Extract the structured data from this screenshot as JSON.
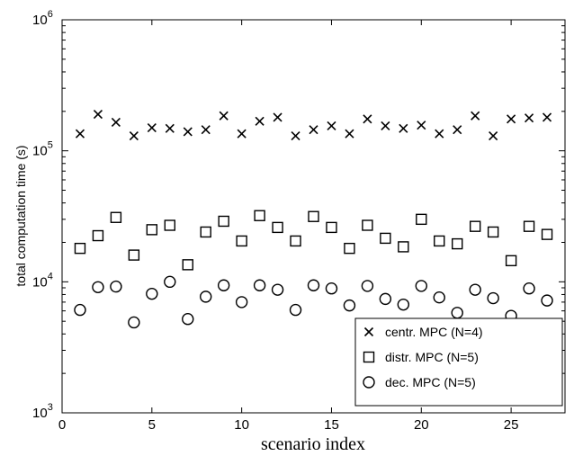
{
  "chart_data": {
    "type": "scatter",
    "xlabel": "scenario index",
    "ylabel": "total computation time (s)",
    "xlim": [
      0,
      28
    ],
    "ylim": [
      1000,
      1000000
    ],
    "yscale": "log",
    "xticks": [
      0,
      5,
      10,
      15,
      20,
      25
    ],
    "yticks": [
      {
        "base": "10",
        "exp": "3",
        "value": 1000
      },
      {
        "base": "10",
        "exp": "4",
        "value": 10000
      },
      {
        "base": "10",
        "exp": "5",
        "value": 100000
      },
      {
        "base": "10",
        "exp": "6",
        "value": 1000000
      }
    ],
    "grid": false,
    "legend_position": "bottom-right",
    "x": [
      1,
      2,
      3,
      4,
      5,
      6,
      7,
      8,
      9,
      10,
      11,
      12,
      13,
      14,
      15,
      16,
      17,
      18,
      19,
      20,
      21,
      22,
      23,
      24,
      25,
      26,
      27
    ],
    "series": [
      {
        "name": "centr. MPC (N=4)",
        "marker": "x",
        "values": [
          135000,
          190000,
          165000,
          130000,
          150000,
          148000,
          140000,
          145000,
          185000,
          135000,
          168000,
          180000,
          130000,
          145000,
          155000,
          135000,
          175000,
          155000,
          148000,
          157000,
          135000,
          145000,
          185000,
          130000,
          175000,
          178000,
          180000
        ]
      },
      {
        "name": "distr. MPC (N=5)",
        "marker": "square",
        "values": [
          18000,
          22500,
          31000,
          16000,
          25000,
          27000,
          13500,
          24000,
          29000,
          20500,
          32000,
          26000,
          20500,
          31500,
          26000,
          18000,
          27000,
          21500,
          18500,
          30000,
          20500,
          19500,
          26500,
          24000,
          14500,
          26500,
          23000
        ]
      },
      {
        "name": "dec. MPC (N=5)",
        "marker": "circle",
        "values": [
          6100,
          9100,
          9200,
          4900,
          8100,
          10000,
          5200,
          7700,
          9400,
          7000,
          9400,
          8700,
          6100,
          9400,
          8900,
          6600,
          9300,
          7400,
          6700,
          9300,
          7600,
          5800,
          8700,
          7500,
          5500,
          8900,
          7200
        ]
      }
    ]
  }
}
